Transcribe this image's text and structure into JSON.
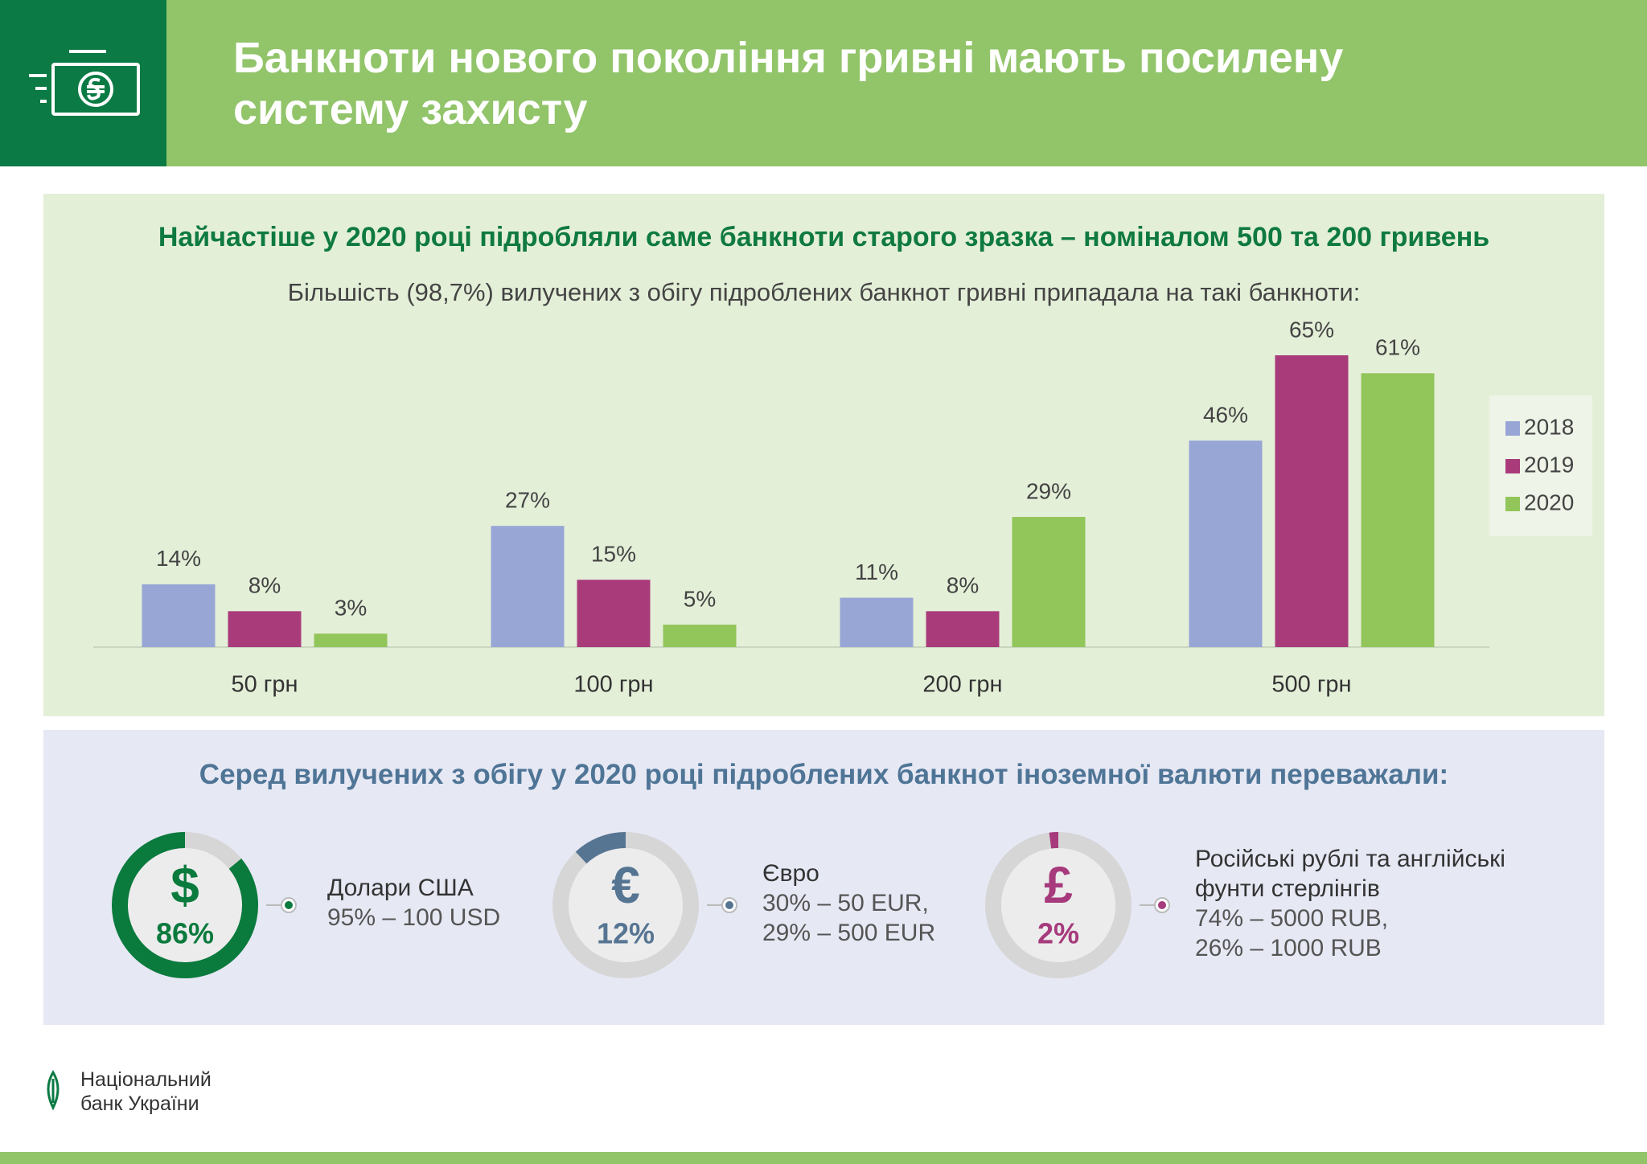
{
  "header": {
    "title": "Банкноти нового покоління гривні мають посилену систему захисту"
  },
  "chart_data": [
    {
      "type": "bar",
      "title": "Найчастіше у 2020 році підробляли саме банкноти старого зразка – номіналом 500 та 200 гривень",
      "subtitle": "Більшість (98,7%) вилучених з обігу підроблених банкнот гривні припадала на такі банкноти:",
      "categories": [
        "50 грн",
        "100 грн",
        "200 грн",
        "500 грн"
      ],
      "series": [
        {
          "name": "2018",
          "color": "#98a6d6",
          "values": [
            14,
            27,
            11,
            46
          ],
          "value_labels": [
            "14%",
            "27%",
            "11%",
            "46%"
          ]
        },
        {
          "name": "2019",
          "color": "#a93b7b",
          "values": [
            8,
            15,
            8,
            65
          ],
          "value_labels": [
            "8%",
            "15%",
            "8%",
            "65%"
          ]
        },
        {
          "name": "2020",
          "color": "#92c55a",
          "values": [
            3,
            5,
            29,
            61
          ],
          "value_labels": [
            "3%",
            "5%",
            "29%",
            "61%"
          ]
        }
      ],
      "legend": "right"
    },
    {
      "type": "donut",
      "title": "Серед вилучених з обігу у 2020 році підроблених банкнот іноземної валюти переважали:",
      "categories": [
        "Долари США",
        "Євро",
        "Російські рублі та англійські фунти стерлінгів"
      ],
      "symbols": [
        "$",
        "€",
        "£"
      ],
      "values": [
        86,
        12,
        2
      ],
      "value_labels": [
        "86%",
        "12%",
        "2%"
      ],
      "colors": [
        "#0a7a3d",
        "#567593",
        "#a63a7c"
      ],
      "details": [
        [
          "95% – 100 USD"
        ],
        [
          "30% – 50 EUR,",
          "29% – 500 EUR"
        ],
        [
          "74% – 5000 RUB,",
          "26% – 1000 RUB"
        ]
      ]
    }
  ],
  "footer": {
    "logo_text": [
      "Національний",
      "банк України"
    ]
  }
}
